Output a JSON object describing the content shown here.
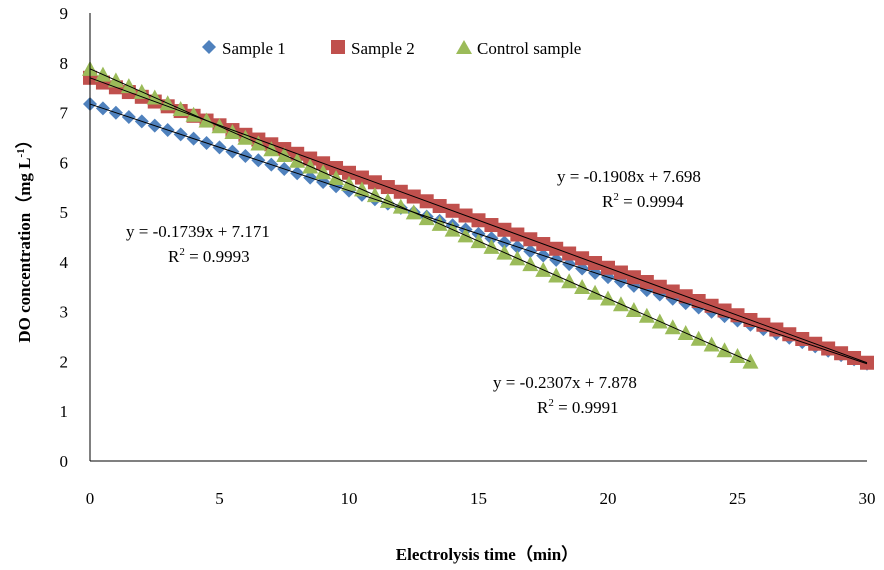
{
  "chart_data": {
    "type": "scatter",
    "xlabel": "Electrolysis time（min）",
    "ylabel": "DO concentration（mg L",
    "ylabel_sup": "-1",
    "ylabel_end": "）",
    "xlim": [
      0,
      30
    ],
    "ylim": [
      0,
      9
    ],
    "xticks": [
      "0",
      "5",
      "10",
      "15",
      "20",
      "25",
      "30"
    ],
    "yticks": [
      "0",
      "1",
      "2",
      "3",
      "4",
      "5",
      "6",
      "7",
      "8",
      "9"
    ],
    "grid": false,
    "legend_position": "top",
    "series": [
      {
        "name": "Sample 1",
        "marker": "diamond",
        "color": "#4f81bd",
        "x_start": 0,
        "x_end": 30,
        "x_step": 0.5,
        "slope": -0.1739,
        "intercept": 7.171
      },
      {
        "name": "Sample 2",
        "marker": "square",
        "color": "#c0504d",
        "x_start": 0,
        "x_end": 30,
        "x_step": 0.5,
        "slope": -0.1908,
        "intercept": 7.698
      },
      {
        "name": "Control sample",
        "marker": "triangle",
        "color": "#9bbb59",
        "x_start": 0,
        "x_end": 25.5,
        "x_step": 0.5,
        "slope": -0.2307,
        "intercept": 7.878
      }
    ],
    "annotations": [
      {
        "eq": "y = -0.1739x + 7.171",
        "r2_label": "R",
        "r2_sup": "2",
        "r2_value": " = 0.9993"
      },
      {
        "eq": "y = -0.1908x + 7.698",
        "r2_label": "R",
        "r2_sup": "2",
        "r2_value": " = 0.9994"
      },
      {
        "eq": "y = -0.2307x + 7.878",
        "r2_label": "R",
        "r2_sup": "2",
        "r2_value": " = 0.9991"
      }
    ]
  }
}
